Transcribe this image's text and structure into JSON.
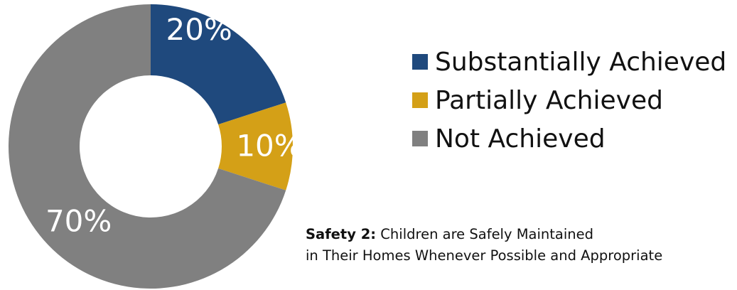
{
  "chart_data": {
    "type": "pie",
    "categories": [
      "Substantially Achieved",
      "Partially Achieved",
      "Not Achieved"
    ],
    "values": [
      20,
      10,
      70
    ],
    "value_labels": [
      "20%",
      "10%",
      "70%"
    ],
    "colors": [
      "#1F497D",
      "#D4A017",
      "#808080"
    ],
    "donut": true,
    "legend_position": "right"
  },
  "caption": {
    "bold": "Safety 2:",
    "line1": " Children are Safely Maintained",
    "line2": "in Their Homes Whenever Possible and Appropriate"
  }
}
